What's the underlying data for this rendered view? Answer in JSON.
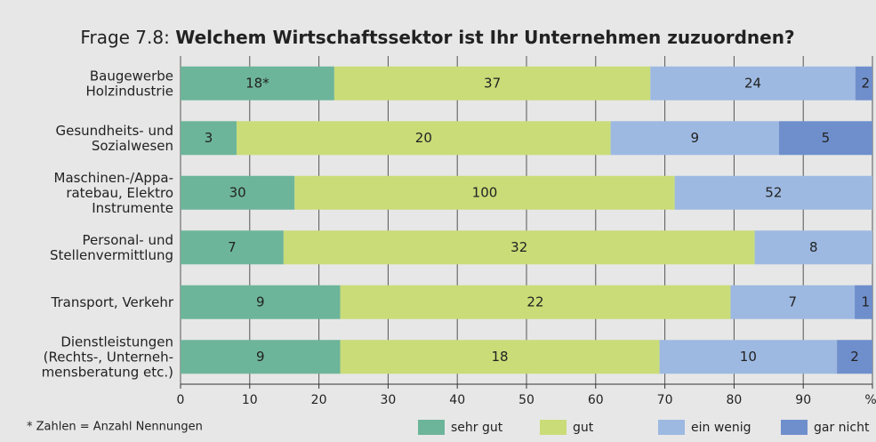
{
  "chart_data": {
    "type": "bar",
    "orientation": "horizontal",
    "stacking": "percent",
    "title_label": "Frage 7.8:",
    "title": "Welchem Wirtschaftssektor ist Ihr Unternehmen zuzuordnen?",
    "categories": [
      [
        "Baugewerbe",
        "Holzindustrie"
      ],
      [
        "Gesundheits- und",
        "Sozialwesen"
      ],
      [
        "Maschinen-/Appa-",
        "ratebau, Elektro",
        "Instrumente"
      ],
      [
        "Personal- und",
        "Stellenvermittlung"
      ],
      [
        "Transport, Verkehr"
      ],
      [
        "Dienstleistungen",
        "(Rechts-, Unterneh-",
        "mensberatung etc.)"
      ]
    ],
    "series": [
      {
        "name": "sehr gut",
        "color": "#6db59a",
        "values": [
          18,
          3,
          30,
          7,
          9,
          9
        ],
        "value_labels": [
          "18*",
          "3",
          "30",
          "7",
          "9",
          "9"
        ]
      },
      {
        "name": "gut",
        "color": "#c9dc78",
        "values": [
          37,
          20,
          100,
          32,
          22,
          18
        ]
      },
      {
        "name": "ein wenig",
        "color": "#9db9e1",
        "values": [
          24,
          9,
          52,
          8,
          7,
          10
        ]
      },
      {
        "name": "gar nicht",
        "color": "#6f8fcc",
        "values": [
          2,
          5,
          null,
          null,
          1,
          2
        ]
      }
    ],
    "xlim": [
      0,
      100
    ],
    "xticks": [
      0,
      10,
      20,
      30,
      40,
      50,
      60,
      70,
      80,
      90,
      {
        "value": 100,
        "label": "%"
      }
    ],
    "grid": true,
    "legend": "bottom-right",
    "footnote": "* Zahlen = Anzahl Nennungen"
  }
}
